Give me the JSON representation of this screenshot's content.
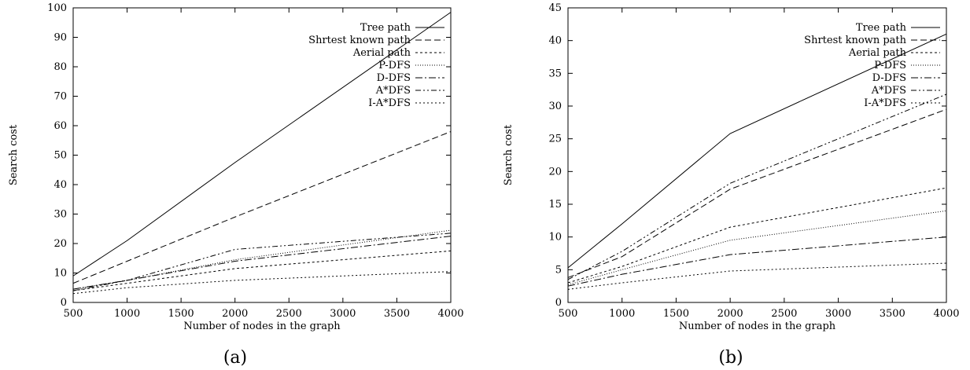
{
  "chart_data": [
    {
      "type": "line",
      "caption": "(a)",
      "xlabel": "Number of nodes in the graph",
      "ylabel": "Search cost",
      "xlim": [
        500,
        4000
      ],
      "ylim": [
        0,
        100
      ],
      "xticks": [
        "500",
        "1000",
        "1500",
        "2000",
        "2500",
        "3000",
        "3500",
        "4000"
      ],
      "yticks": [
        "0",
        "10",
        "20",
        "30",
        "40",
        "50",
        "60",
        "70",
        "80",
        "90",
        "100"
      ],
      "legend_position": "top-right",
      "grid": false,
      "x": [
        500,
        1000,
        2000,
        4000
      ],
      "series": [
        {
          "name": "Tree path",
          "dash": "solid",
          "values": [
            9.0,
            21.0,
            47.5,
            98.5
          ]
        },
        {
          "name": "Shrtest known path",
          "dash": "dashed",
          "values": [
            6.5,
            14.0,
            29.0,
            58.0
          ]
        },
        {
          "name": "Aerial path",
          "dash": "short-dashed",
          "values": [
            4.0,
            6.5,
            11.5,
            17.5
          ]
        },
        {
          "name": "P-DFS",
          "dash": "dotted",
          "values": [
            4.5,
            7.5,
            14.5,
            24.5
          ]
        },
        {
          "name": "D-DFS",
          "dash": "dash-dot",
          "values": [
            4.5,
            7.5,
            14.0,
            22.5
          ]
        },
        {
          "name": "A*DFS",
          "dash": "dash-dot-dot",
          "values": [
            4.0,
            7.5,
            18.0,
            23.5
          ]
        },
        {
          "name": "I-A*DFS",
          "dash": "fine-dashed",
          "values": [
            3.0,
            5.0,
            7.5,
            10.5
          ]
        }
      ]
    },
    {
      "type": "line",
      "caption": "(b)",
      "xlabel": "Number of nodes in the graph",
      "ylabel": "Search cost",
      "xlim": [
        500,
        4000
      ],
      "ylim": [
        0,
        45
      ],
      "xticks": [
        "500",
        "1000",
        "1500",
        "2000",
        "2500",
        "3000",
        "3500",
        "4000"
      ],
      "yticks": [
        "0",
        "5",
        "10",
        "15",
        "20",
        "25",
        "30",
        "35",
        "40",
        "45"
      ],
      "legend_position": "top-right",
      "grid": false,
      "x": [
        500,
        1000,
        2000,
        4000
      ],
      "series": [
        {
          "name": "Tree path",
          "dash": "solid",
          "values": [
            5.3,
            12.0,
            25.8,
            41.0
          ]
        },
        {
          "name": "Shrtest known path",
          "dash": "dashed",
          "values": [
            3.8,
            7.0,
            17.3,
            29.5
          ]
        },
        {
          "name": "Aerial path",
          "dash": "short-dashed",
          "values": [
            3.0,
            5.5,
            11.5,
            17.5
          ]
        },
        {
          "name": "P-DFS",
          "dash": "dotted",
          "values": [
            2.7,
            5.0,
            9.5,
            14.0
          ]
        },
        {
          "name": "D-DFS",
          "dash": "dash-dot",
          "values": [
            2.5,
            4.3,
            7.3,
            10.0
          ]
        },
        {
          "name": "A*DFS",
          "dash": "dash-dot-dot",
          "values": [
            3.5,
            7.8,
            18.2,
            31.8
          ]
        },
        {
          "name": "I-A*DFS",
          "dash": "fine-dashed",
          "values": [
            2.0,
            3.0,
            4.8,
            6.0
          ]
        }
      ]
    }
  ]
}
